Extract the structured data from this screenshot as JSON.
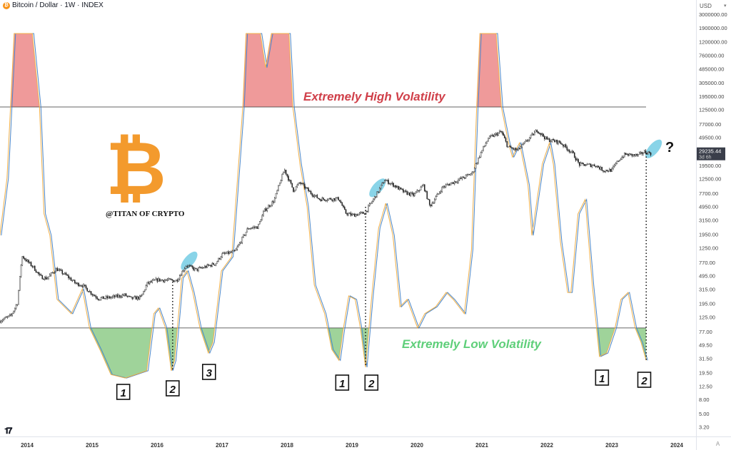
{
  "header": {
    "symbol_title": "Bitcoin / Dollar · 1W · INDEX",
    "coin_icon": "bitcoin-coin-icon"
  },
  "price_axis": {
    "currency": "USD",
    "auto_label": "A",
    "last_price": "29235.44",
    "last_price_value": 29235.44,
    "countdown": "3d 6h"
  },
  "watermark": {
    "logo_text": "TV",
    "author": "@TITAN OF CRYPTO",
    "logo_color": "#f7931a"
  },
  "colors": {
    "candles": "#222222",
    "indicator_fast": "#f0b04a",
    "indicator_slow": "#4a86c8",
    "high_fill": "#ef9a9a",
    "low_fill": "#9fd39a",
    "high_text": "#d0404a",
    "low_text": "#5fcf7a",
    "highlight": "#7ccfe6"
  },
  "chart_data": {
    "type": "line",
    "title": "Bitcoin / Dollar · 1W · INDEX",
    "y_scale": "log",
    "ylim": [
      3.2,
      3000000
    ],
    "xlim": [
      2013.58,
      2024.35
    ],
    "grid": false,
    "y_ticks": [
      {
        "label": "3000000.00",
        "value": 3000000
      },
      {
        "label": "1900000.00",
        "value": 1900000
      },
      {
        "label": "1200000.00",
        "value": 1200000
      },
      {
        "label": "760000.00",
        "value": 760000
      },
      {
        "label": "485000.00",
        "value": 485000
      },
      {
        "label": "305000.00",
        "value": 305000
      },
      {
        "label": "195000.00",
        "value": 195000
      },
      {
        "label": "125000.00",
        "value": 125000
      },
      {
        "label": "77000.00",
        "value": 77000
      },
      {
        "label": "49500.00",
        "value": 49500
      },
      {
        "label": "19500.00",
        "value": 19500
      },
      {
        "label": "12500.00",
        "value": 12500
      },
      {
        "label": "7700.00",
        "value": 7700
      },
      {
        "label": "4950.00",
        "value": 4950
      },
      {
        "label": "3150.00",
        "value": 3150
      },
      {
        "label": "1950.00",
        "value": 1950
      },
      {
        "label": "1250.00",
        "value": 1250
      },
      {
        "label": "770.00",
        "value": 770
      },
      {
        "label": "495.00",
        "value": 495
      },
      {
        "label": "315.00",
        "value": 315
      },
      {
        "label": "195.00",
        "value": 195
      },
      {
        "label": "125.00",
        "value": 125
      },
      {
        "label": "77.00",
        "value": 77
      },
      {
        "label": "49.50",
        "value": 49.5
      },
      {
        "label": "31.50",
        "value": 31.5
      },
      {
        "label": "19.50",
        "value": 19.5
      },
      {
        "label": "12.50",
        "value": 12.5
      },
      {
        "label": "8.00",
        "value": 8
      },
      {
        "label": "5.00",
        "value": 5
      },
      {
        "label": "3.20",
        "value": 3.2
      }
    ],
    "x_ticks": [
      "2014",
      "2015",
      "2016",
      "2017",
      "2018",
      "2019",
      "2020",
      "2021",
      "2022",
      "2023",
      "2024"
    ],
    "price_series": [
      [
        2013.58,
        110
      ],
      [
        2013.75,
        130
      ],
      [
        2013.85,
        200
      ],
      [
        2013.92,
        950
      ],
      [
        2014.0,
        800
      ],
      [
        2014.1,
        650
      ],
      [
        2014.2,
        480
      ],
      [
        2014.3,
        450
      ],
      [
        2014.45,
        620
      ],
      [
        2014.6,
        500
      ],
      [
        2014.75,
        380
      ],
      [
        2014.85,
        360
      ],
      [
        2015.0,
        270
      ],
      [
        2015.1,
        230
      ],
      [
        2015.3,
        240
      ],
      [
        2015.5,
        260
      ],
      [
        2015.6,
        230
      ],
      [
        2015.75,
        240
      ],
      [
        2015.85,
        380
      ],
      [
        2016.0,
        430
      ],
      [
        2016.3,
        420
      ],
      [
        2016.45,
        700
      ],
      [
        2016.6,
        600
      ],
      [
        2016.9,
        740
      ],
      [
        2017.0,
        1000
      ],
      [
        2017.2,
        1100
      ],
      [
        2017.4,
        2400
      ],
      [
        2017.55,
        2500
      ],
      [
        2017.65,
        4300
      ],
      [
        2017.8,
        6000
      ],
      [
        2017.96,
        17000
      ],
      [
        2018.1,
        8500
      ],
      [
        2018.2,
        11000
      ],
      [
        2018.35,
        8000
      ],
      [
        2018.5,
        6300
      ],
      [
        2018.8,
        6400
      ],
      [
        2018.9,
        4000
      ],
      [
        2019.0,
        3700
      ],
      [
        2019.2,
        4000
      ],
      [
        2019.4,
        8000
      ],
      [
        2019.5,
        12000
      ],
      [
        2019.65,
        10000
      ],
      [
        2019.8,
        8000
      ],
      [
        2019.95,
        7200
      ],
      [
        2020.1,
        10000
      ],
      [
        2020.2,
        5000
      ],
      [
        2020.4,
        9500
      ],
      [
        2020.6,
        11500
      ],
      [
        2020.85,
        15000
      ],
      [
        2020.98,
        29000
      ],
      [
        2021.1,
        48000
      ],
      [
        2021.3,
        60000
      ],
      [
        2021.4,
        36000
      ],
      [
        2021.55,
        32000
      ],
      [
        2021.7,
        45000
      ],
      [
        2021.85,
        63000
      ],
      [
        2022.0,
        46000
      ],
      [
        2022.2,
        42000
      ],
      [
        2022.4,
        29000
      ],
      [
        2022.5,
        20000
      ],
      [
        2022.75,
        19500
      ],
      [
        2022.87,
        16500
      ],
      [
        2023.0,
        16600
      ],
      [
        2023.1,
        23000
      ],
      [
        2023.2,
        28000
      ],
      [
        2023.4,
        27000
      ],
      [
        2023.5,
        30500
      ],
      [
        2023.6,
        29235
      ]
    ],
    "indicator": {
      "range": [
        0,
        100
      ],
      "high_threshold": 78.9,
      "low_threshold": 15.4,
      "series": [
        [
          2013.58,
          42
        ],
        [
          2013.69,
          58.4
        ],
        [
          2013.8,
          100
        ],
        [
          2014.08,
          100
        ],
        [
          2014.19,
          78.9
        ],
        [
          2014.26,
          48.2
        ],
        [
          2014.35,
          42
        ],
        [
          2014.46,
          23.6
        ],
        [
          2014.68,
          19.5
        ],
        [
          2014.85,
          26.6
        ],
        [
          2014.96,
          15.4
        ],
        [
          2015.12,
          9.2
        ],
        [
          2015.29,
          2
        ],
        [
          2015.51,
          1
        ],
        [
          2015.84,
          3.1
        ],
        [
          2015.95,
          19.5
        ],
        [
          2016.02,
          21.1
        ],
        [
          2016.13,
          15.4
        ],
        [
          2016.22,
          3.1
        ],
        [
          2016.27,
          6.1
        ],
        [
          2016.38,
          29.7
        ],
        [
          2016.46,
          31.8
        ],
        [
          2016.55,
          25.6
        ],
        [
          2016.66,
          15.4
        ],
        [
          2016.79,
          8.2
        ],
        [
          2016.86,
          11.3
        ],
        [
          2016.99,
          31.8
        ],
        [
          2017.15,
          35.9
        ],
        [
          2017.32,
          78.9
        ],
        [
          2017.37,
          100
        ],
        [
          2017.59,
          100
        ],
        [
          2017.67,
          90.2
        ],
        [
          2017.76,
          100
        ],
        [
          2018.03,
          100
        ],
        [
          2018.09,
          78.9
        ],
        [
          2018.2,
          62.5
        ],
        [
          2018.31,
          50.2
        ],
        [
          2018.42,
          27.7
        ],
        [
          2018.58,
          19.5
        ],
        [
          2018.69,
          9.2
        ],
        [
          2018.8,
          6.1
        ],
        [
          2018.86,
          14.3
        ],
        [
          2018.95,
          24.6
        ],
        [
          2019.05,
          23.6
        ],
        [
          2019.13,
          15.4
        ],
        [
          2019.21,
          4.1
        ],
        [
          2019.3,
          23.6
        ],
        [
          2019.41,
          44.1
        ],
        [
          2019.52,
          51.2
        ],
        [
          2019.63,
          42
        ],
        [
          2019.74,
          21.5
        ],
        [
          2019.85,
          23.6
        ],
        [
          2019.93,
          19.5
        ],
        [
          2020.01,
          15.4
        ],
        [
          2020.12,
          19.5
        ],
        [
          2020.29,
          21.5
        ],
        [
          2020.45,
          25.6
        ],
        [
          2020.56,
          23.6
        ],
        [
          2020.73,
          19.5
        ],
        [
          2020.84,
          37.9
        ],
        [
          2020.92,
          78.9
        ],
        [
          2020.97,
          100
        ],
        [
          2021.22,
          100
        ],
        [
          2021.3,
          78.9
        ],
        [
          2021.41,
          68.6
        ],
        [
          2021.47,
          64.5
        ],
        [
          2021.58,
          68.6
        ],
        [
          2021.71,
          56.4
        ],
        [
          2021.77,
          42
        ],
        [
          2021.85,
          52.3
        ],
        [
          2021.93,
          62.5
        ],
        [
          2022.04,
          68.6
        ],
        [
          2022.1,
          62.5
        ],
        [
          2022.21,
          40
        ],
        [
          2022.32,
          25.6
        ],
        [
          2022.37,
          25.6
        ],
        [
          2022.48,
          48.2
        ],
        [
          2022.59,
          52.3
        ],
        [
          2022.7,
          27.7
        ],
        [
          2022.81,
          7.2
        ],
        [
          2022.92,
          8.2
        ],
        [
          2023.05,
          15.4
        ],
        [
          2023.14,
          23.6
        ],
        [
          2023.25,
          25.6
        ],
        [
          2023.36,
          15.4
        ],
        [
          2023.45,
          11.3
        ],
        [
          2023.53,
          6.1
        ]
      ]
    },
    "annotations": {
      "high_label": "Extremely High Volatility",
      "low_label": "Extremely Low Volatility",
      "question": "?",
      "markers": [
        {
          "label": "1",
          "year": 2015.48
        },
        {
          "label": "2",
          "year": 2016.24
        },
        {
          "label": "3",
          "year": 2016.8
        },
        {
          "label": "1",
          "year": 2018.85
        },
        {
          "label": "2",
          "year": 2019.3
        },
        {
          "label": "1",
          "year": 2022.85
        },
        {
          "label": "2",
          "year": 2023.5
        }
      ],
      "dotted_lines": [
        2016.24,
        2019.21,
        2023.53
      ],
      "highlights": [
        2016.45,
        2019.35,
        2023.6
      ]
    }
  }
}
